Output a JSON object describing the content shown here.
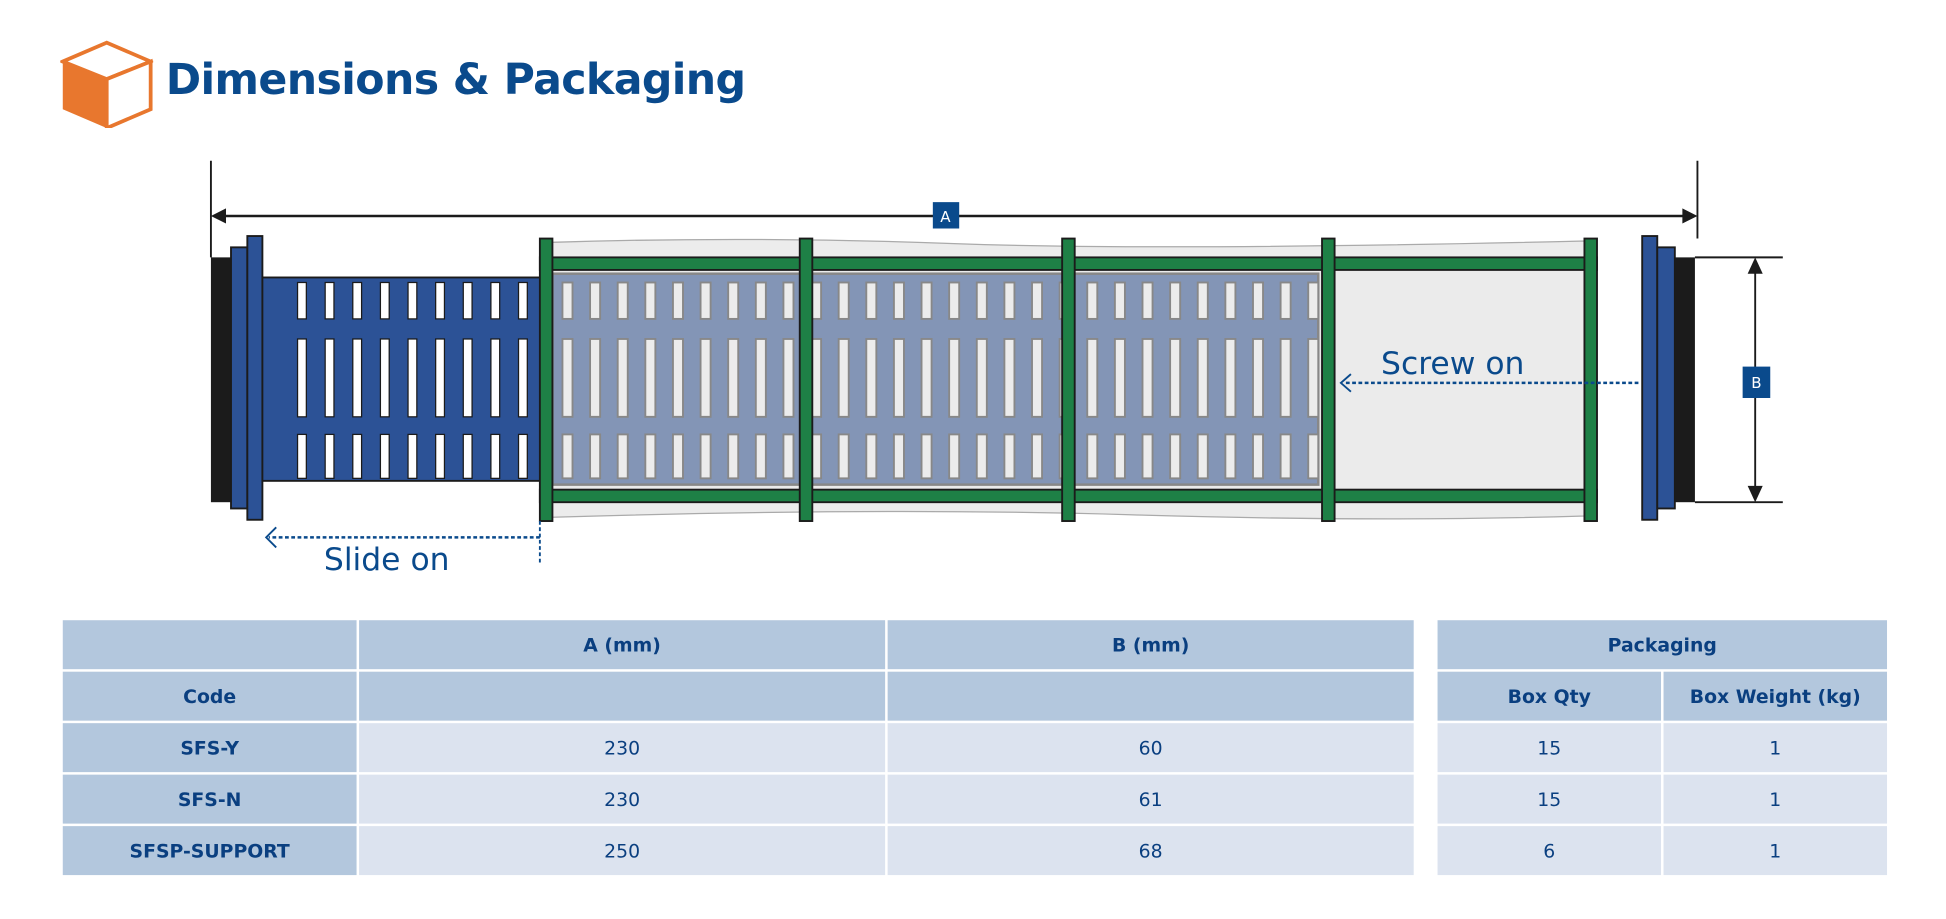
{
  "header": {
    "title": "Dimensions & Packaging",
    "icon": "box-icon"
  },
  "diagram": {
    "label_a": "A",
    "label_b": "B",
    "screw_on": "Screw on",
    "slide_on": "Slide on"
  },
  "colors": {
    "brand_blue": "#0a4a8c",
    "icon_orange": "#e8772e",
    "frame_green": "#1e8046",
    "part_blue": "#2c5296",
    "header_bg": "#b3c7dd",
    "cell_bg": "#dce3ef"
  },
  "dimensions_table": {
    "headers": [
      "A (mm)",
      "B (mm)"
    ],
    "code_header": "Code",
    "rows": [
      {
        "code": "SFS-Y",
        "a": "230",
        "b": "60"
      },
      {
        "code": "SFS-N",
        "a": "230",
        "b": "61"
      },
      {
        "code": "SFSP-SUPPORT",
        "a": "250",
        "b": "68"
      }
    ]
  },
  "packaging_table": {
    "header": "Packaging",
    "columns": [
      "Box Qty",
      "Box Weight (kg)"
    ],
    "rows": [
      {
        "qty": "15",
        "weight": "1"
      },
      {
        "qty": "15",
        "weight": "1"
      },
      {
        "qty": "6",
        "weight": "1"
      }
    ]
  }
}
